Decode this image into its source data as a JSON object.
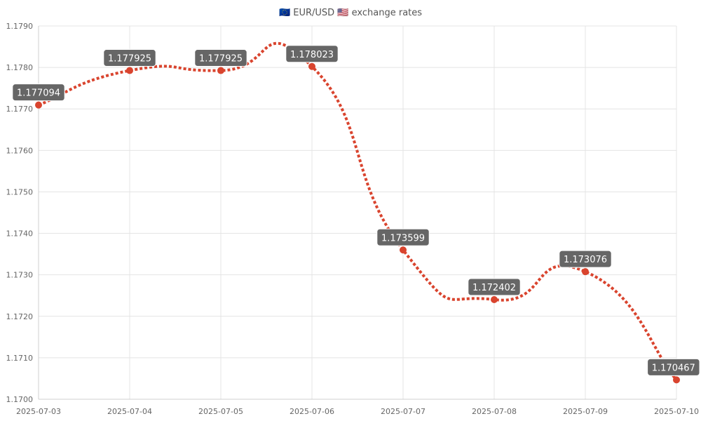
{
  "chart_data": {
    "type": "line",
    "title": "🇪🇺 EUR/USD 🇺🇸 exchange rates",
    "x": [
      "2025-07-03",
      "2025-07-04",
      "2025-07-05",
      "2025-07-06",
      "2025-07-07",
      "2025-07-08",
      "2025-07-09",
      "2025-07-10"
    ],
    "series": [
      {
        "values": [
          1.177094,
          1.177925,
          1.177925,
          1.178023,
          1.173599,
          1.172402,
          1.173076,
          1.170467
        ],
        "data_labels": [
          "1.177094",
          "1.177925",
          "1.177925",
          "1.178023",
          "1.173599",
          "1.172402",
          "1.173076",
          "1.170467"
        ]
      }
    ],
    "y_ticks": [
      "1.1700",
      "1.1710",
      "1.1720",
      "1.1730",
      "1.1740",
      "1.1750",
      "1.1760",
      "1.1770",
      "1.1780",
      "1.1790"
    ],
    "ylim": [
      1.17,
      1.179
    ],
    "grid": true,
    "line_style": "dashed smooth",
    "colors": {
      "line": "#d9442e",
      "label_bg": "#666666",
      "label_text": "#ffffff"
    }
  }
}
